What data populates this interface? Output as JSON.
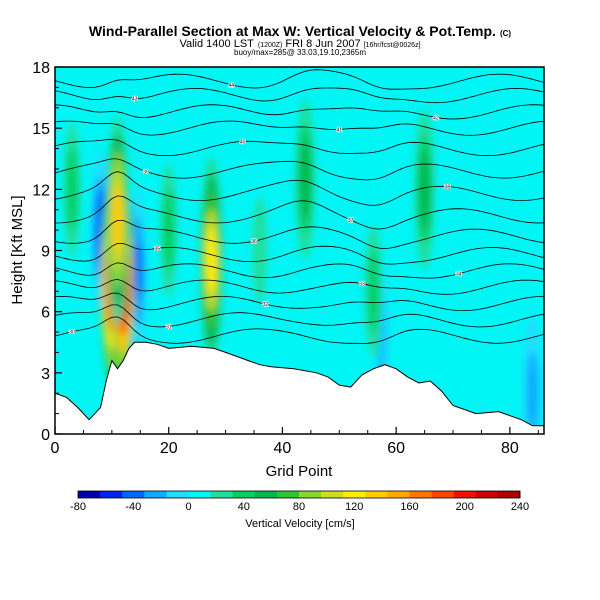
{
  "chart_data": {
    "type": "heatmap",
    "title": "Wind-Parallel Section at Max W: Vertical Velocity & Pot.Temp.",
    "title_unit": "(C)",
    "subtitle_line1": "Valid 1400 LST",
    "subtitle_time_tag": "(1200Z)",
    "subtitle_date": "FRI 8 Jun 2007",
    "subtitle_model_tag": "[16hr/fcst@0026z]",
    "subtitle_line2": "buoy/max=285@ 33.03,19.10,2365m",
    "xlabel": "Grid Point",
    "ylabel": "Height [Kft MSL]",
    "xlim": [
      0,
      86
    ],
    "ylim": [
      0,
      18
    ],
    "x_ticks": [
      "0",
      "20",
      "40",
      "60",
      "80"
    ],
    "y_ticks": [
      "0",
      "3",
      "6",
      "9",
      "12",
      "15",
      "18"
    ],
    "background_w": 5,
    "updrafts": [
      {
        "x": 10,
        "y": 7.5,
        "w": 200
      },
      {
        "x": 12,
        "y": 7.3,
        "w": 230
      },
      {
        "x": 11,
        "y": 10.5,
        "w": 130
      },
      {
        "x": 27.5,
        "y": 8.5,
        "w": 120
      },
      {
        "x": 3,
        "y": 12,
        "w": 45
      },
      {
        "x": 20,
        "y": 10,
        "w": 40
      },
      {
        "x": 44,
        "y": 12.5,
        "w": 60
      },
      {
        "x": 56,
        "y": 7,
        "w": 45
      },
      {
        "x": 65,
        "y": 12,
        "w": 60
      },
      {
        "x": 36,
        "y": 9,
        "w": 25
      }
    ],
    "downdrafts": [
      {
        "x": 8,
        "y": 10,
        "w": -45
      },
      {
        "x": 14.5,
        "y": 8,
        "w": -35
      },
      {
        "x": 57,
        "y": 5,
        "w": -30
      },
      {
        "x": 84,
        "y": 2,
        "w": -25
      }
    ],
    "terrain": [
      [
        0,
        2.0
      ],
      [
        2,
        1.8
      ],
      [
        4,
        1.3
      ],
      [
        6,
        0.7
      ],
      [
        8,
        1.3
      ],
      [
        9,
        2.6
      ],
      [
        10,
        3.6
      ],
      [
        11,
        3.2
      ],
      [
        12,
        3.6
      ],
      [
        13,
        4.2
      ],
      [
        14,
        4.5
      ],
      [
        16,
        4.5
      ],
      [
        18,
        4.4
      ],
      [
        20,
        4.2
      ],
      [
        24,
        4.3
      ],
      [
        28,
        4.2
      ],
      [
        30,
        4.0
      ],
      [
        32,
        3.8
      ],
      [
        34,
        3.6
      ],
      [
        36,
        3.4
      ],
      [
        38,
        3.3
      ],
      [
        42,
        3.2
      ],
      [
        46,
        3.0
      ],
      [
        48,
        2.8
      ],
      [
        50,
        2.4
      ],
      [
        52,
        2.3
      ],
      [
        54,
        2.9
      ],
      [
        56,
        3.2
      ],
      [
        58,
        3.4
      ],
      [
        60,
        3.2
      ],
      [
        62,
        2.8
      ],
      [
        64,
        2.5
      ],
      [
        66,
        2.6
      ],
      [
        68,
        2.1
      ],
      [
        70,
        1.4
      ],
      [
        72,
        1.2
      ],
      [
        74,
        1.0
      ],
      [
        78,
        1.1
      ],
      [
        82,
        0.7
      ],
      [
        84,
        0.4
      ],
      [
        86,
        0.4
      ]
    ],
    "theta_contours": [
      {
        "y0": 4.8,
        "label": "30"
      },
      {
        "y0": 5.6,
        "label": "31"
      },
      {
        "y0": 6.4,
        "label": "32"
      },
      {
        "y0": 7.2,
        "label": "33"
      },
      {
        "y0": 8.0,
        "label": "34"
      },
      {
        "y0": 8.8,
        "label": "35"
      },
      {
        "y0": 9.7,
        "label": "36"
      },
      {
        "y0": 10.7,
        "label": "37"
      },
      {
        "y0": 11.8,
        "label": "38"
      },
      {
        "y0": 12.9,
        "label": "39"
      },
      {
        "y0": 14.0,
        "label": "40"
      },
      {
        "y0": 15.0,
        "label": "41"
      },
      {
        "y0": 15.8,
        "label": "42"
      },
      {
        "y0": 16.6,
        "label": "43"
      },
      {
        "y0": 17.3,
        "label": "44"
      }
    ],
    "colorbar": {
      "label": "Vertical Velocity [cm/s]",
      "min": -80,
      "max": 240,
      "ticks": [
        "-80",
        "-40",
        "0",
        "40",
        "80",
        "120",
        "160",
        "200",
        "240"
      ],
      "colors": [
        "#0000aa",
        "#0022ee",
        "#0066ff",
        "#11aaff",
        "#22ddff",
        "#00f5f5",
        "#22dd99",
        "#00d060",
        "#00b850",
        "#33c433",
        "#88d633",
        "#ccdd22",
        "#ffee00",
        "#ffcc00",
        "#ffaa00",
        "#ff7700",
        "#ff4400",
        "#ee1100",
        "#cc0000",
        "#aa0000"
      ]
    }
  }
}
